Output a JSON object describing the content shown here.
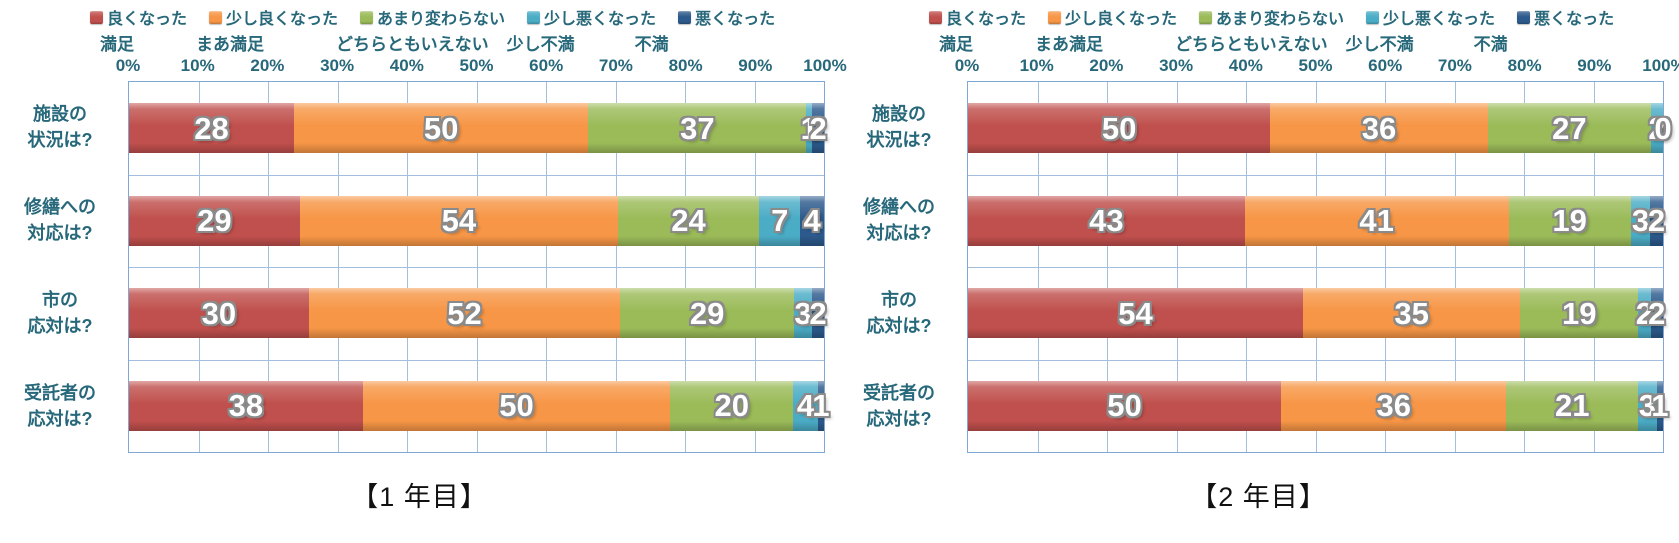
{
  "chart_data": [
    {
      "type": "bar",
      "orientation": "horizontal",
      "stacking": "percent-of-row-total",
      "caption": "【1 年目】",
      "x_ticks": [
        "0%",
        "10%",
        "20%",
        "30%",
        "40%",
        "50%",
        "60%",
        "70%",
        "80%",
        "90%",
        "100%"
      ],
      "grid": true,
      "legend_position": "top",
      "categories": [
        [
          "施設の",
          "状況は?"
        ],
        [
          "修繕への",
          "対応は?"
        ],
        [
          "市の",
          "応対は?"
        ],
        [
          "受託者の",
          "応対は?"
        ]
      ],
      "series": [
        {
          "name": "良くなった",
          "alt_name": "満足",
          "color": "#C0504D",
          "values": [
            28,
            29,
            30,
            38
          ]
        },
        {
          "name": "少し良くなった",
          "alt_name": "まあ満足",
          "color": "#F79646",
          "values": [
            50,
            54,
            52,
            50
          ]
        },
        {
          "name": "あまり変わらない",
          "alt_name": "どちらともいえない",
          "color": "#9BBB59",
          "values": [
            37,
            24,
            29,
            20
          ]
        },
        {
          "name": "少し悪くなった",
          "alt_name": "少し不満",
          "color": "#4BACC6",
          "values": [
            1,
            7,
            3,
            4
          ]
        },
        {
          "name": "悪くなった",
          "alt_name": "不満",
          "color": "#2D5A8C",
          "values": [
            2,
            4,
            2,
            1
          ]
        }
      ]
    },
    {
      "type": "bar",
      "orientation": "horizontal",
      "stacking": "percent-of-row-total",
      "caption": "【2 年目】",
      "x_ticks": [
        "0%",
        "10%",
        "20%",
        "30%",
        "40%",
        "50%",
        "60%",
        "70%",
        "80%",
        "90%",
        "100%"
      ],
      "grid": true,
      "legend_position": "top",
      "categories": [
        [
          "施設の",
          "状況は?"
        ],
        [
          "修繕への",
          "対応は?"
        ],
        [
          "市の",
          "応対は?"
        ],
        [
          "受託者の",
          "応対は?"
        ]
      ],
      "series": [
        {
          "name": "良くなった",
          "alt_name": "満足",
          "color": "#C0504D",
          "values": [
            50,
            43,
            54,
            50
          ]
        },
        {
          "name": "少し良くなった",
          "alt_name": "まあ満足",
          "color": "#F79646",
          "values": [
            36,
            41,
            35,
            36
          ]
        },
        {
          "name": "あまり変わらない",
          "alt_name": "どちらともいえない",
          "color": "#9BBB59",
          "values": [
            27,
            19,
            19,
            21
          ]
        },
        {
          "name": "少し悪くなった",
          "alt_name": "少し不満",
          "color": "#4BACC6",
          "values": [
            2,
            3,
            2,
            3
          ]
        },
        {
          "name": "悪くなった",
          "alt_name": "不満",
          "color": "#2D5A8C",
          "values": [
            0,
            2,
            2,
            1
          ]
        }
      ]
    }
  ],
  "style_colors": {
    "gridline": "#A4BEDE",
    "plot_border": "#7FA8D4",
    "axis_text": "#27687A",
    "bar_label_text": "#FFFFFF"
  }
}
